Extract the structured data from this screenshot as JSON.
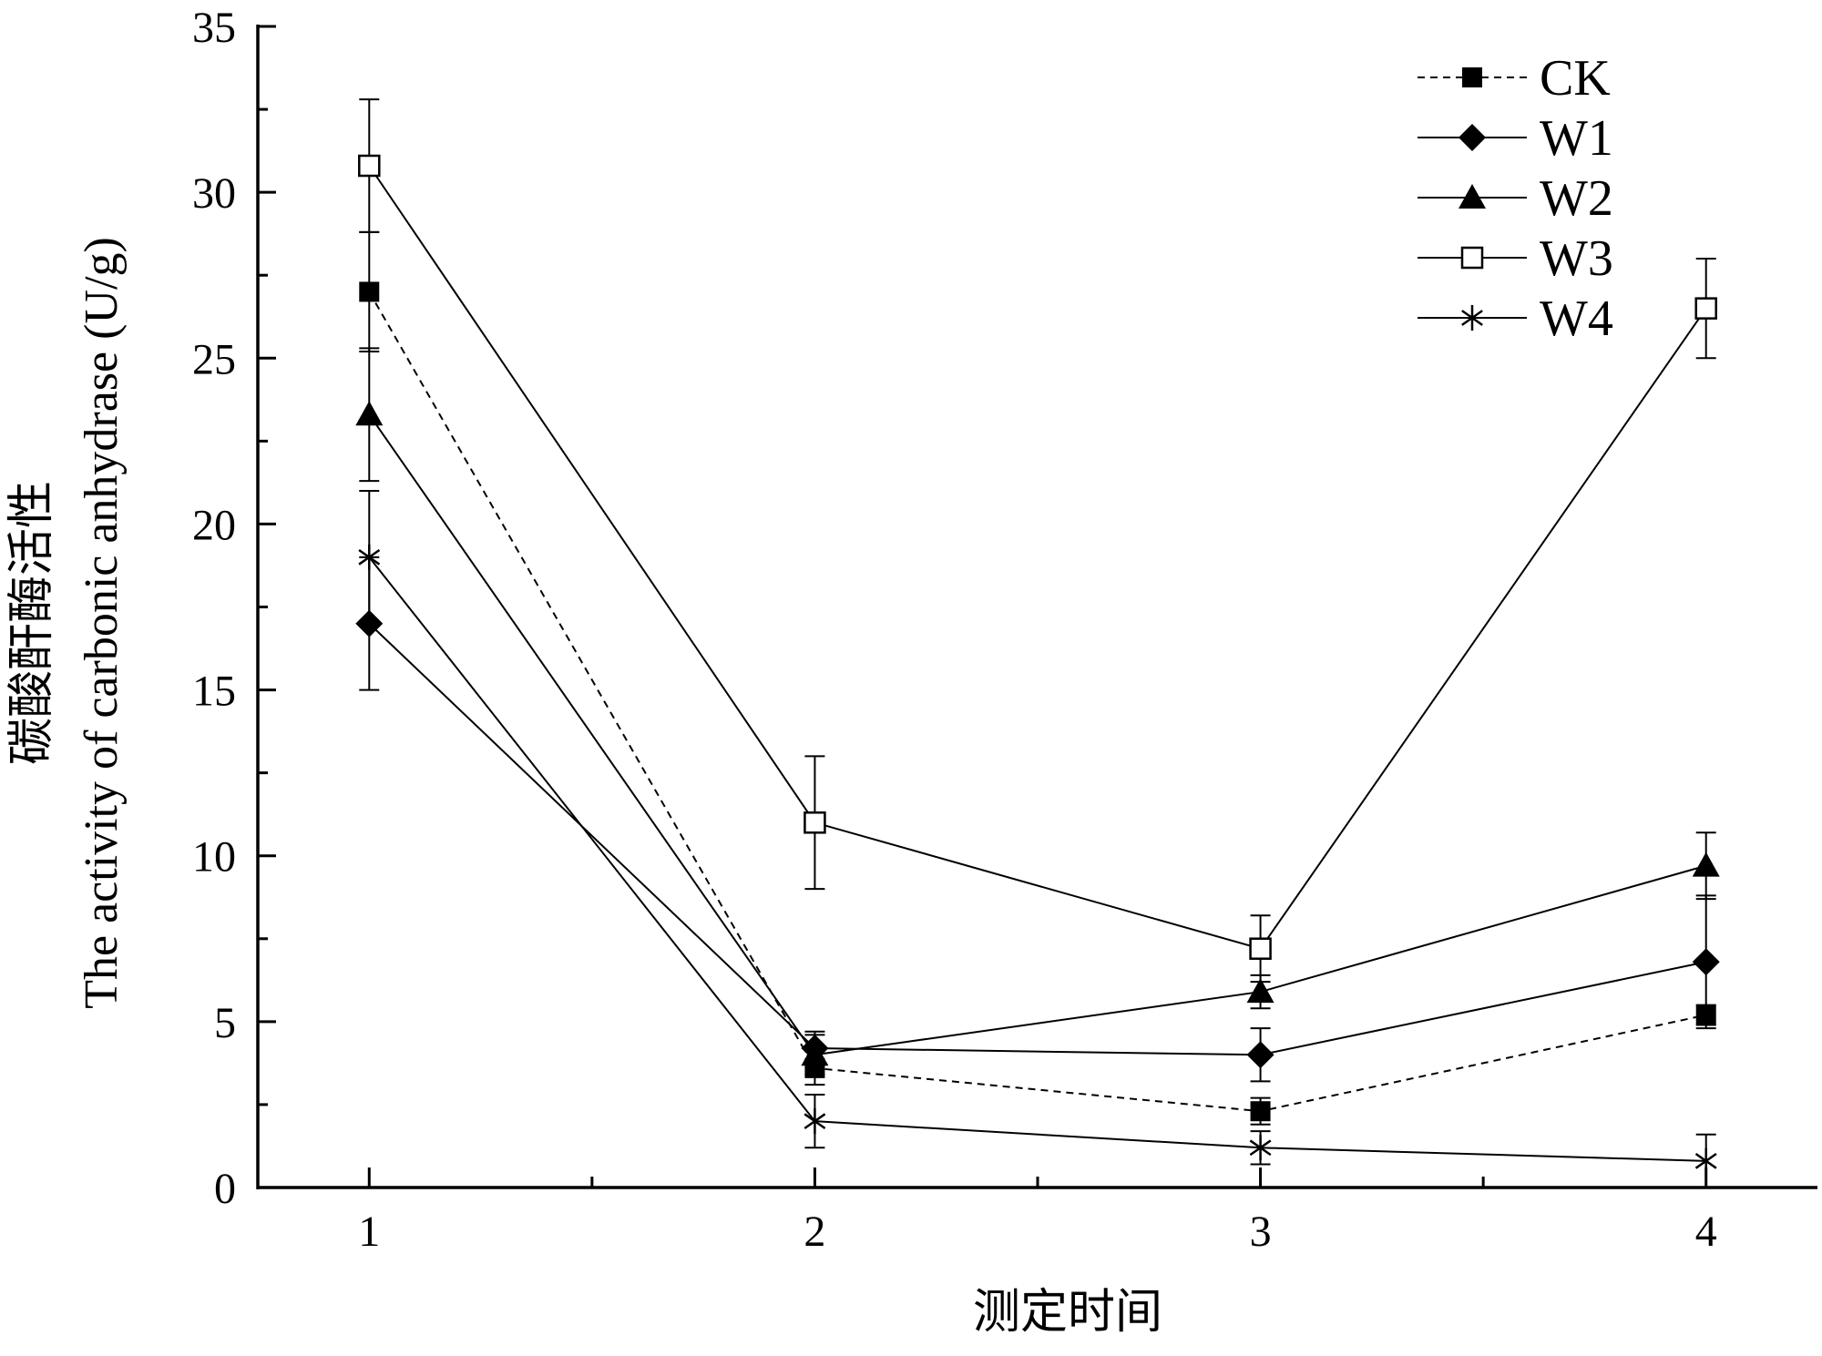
{
  "chart_data": {
    "type": "line",
    "title": "",
    "xlabel": "测定时间",
    "ylabel_lines": [
      "碳酸酐酶活性",
      "The activity of carbonic anhydrase (U/g)"
    ],
    "x": [
      1,
      2,
      3,
      4
    ],
    "x_ticks": [
      "1",
      "2",
      "3",
      "4"
    ],
    "xlim": [
      0.75,
      4.25
    ],
    "ylim": [
      0,
      35
    ],
    "y_ticks": [
      "0",
      "5",
      "10",
      "15",
      "20",
      "25",
      "30",
      "35"
    ],
    "grid": false,
    "legend_position": "top-right",
    "series": [
      {
        "name": "CK",
        "marker": "filled-square",
        "line": "dashed",
        "values": [
          27.0,
          3.6,
          2.3,
          5.2
        ],
        "errors": [
          1.8,
          0.5,
          0.4,
          0.3
        ]
      },
      {
        "name": "W1",
        "marker": "filled-diamond",
        "line": "solid",
        "values": [
          17.0,
          4.2,
          4.0,
          6.8
        ],
        "errors": [
          2.0,
          0.5,
          0.8,
          2.0
        ]
      },
      {
        "name": "W2",
        "marker": "filled-triangle",
        "line": "solid",
        "values": [
          23.3,
          4.0,
          5.9,
          9.7
        ],
        "errors": [
          2.0,
          0.6,
          0.5,
          1.0
        ]
      },
      {
        "name": "W3",
        "marker": "open-square",
        "line": "solid",
        "values": [
          30.8,
          11.0,
          7.2,
          26.5
        ],
        "errors": [
          2.0,
          2.0,
          1.0,
          1.5
        ]
      },
      {
        "name": "W4",
        "marker": "asterisk",
        "line": "solid",
        "values": [
          19.0,
          2.0,
          1.2,
          0.8
        ],
        "errors": [
          2.0,
          0.8,
          0.5,
          0.8
        ]
      }
    ]
  }
}
